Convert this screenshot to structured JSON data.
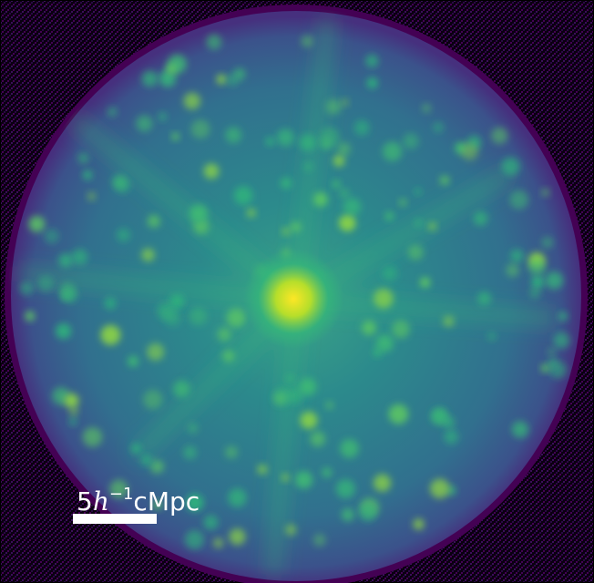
{
  "scale_bar": {
    "number": "5",
    "unit_symbol": "h",
    "exponent": "−1",
    "unit": "cMpc"
  }
}
